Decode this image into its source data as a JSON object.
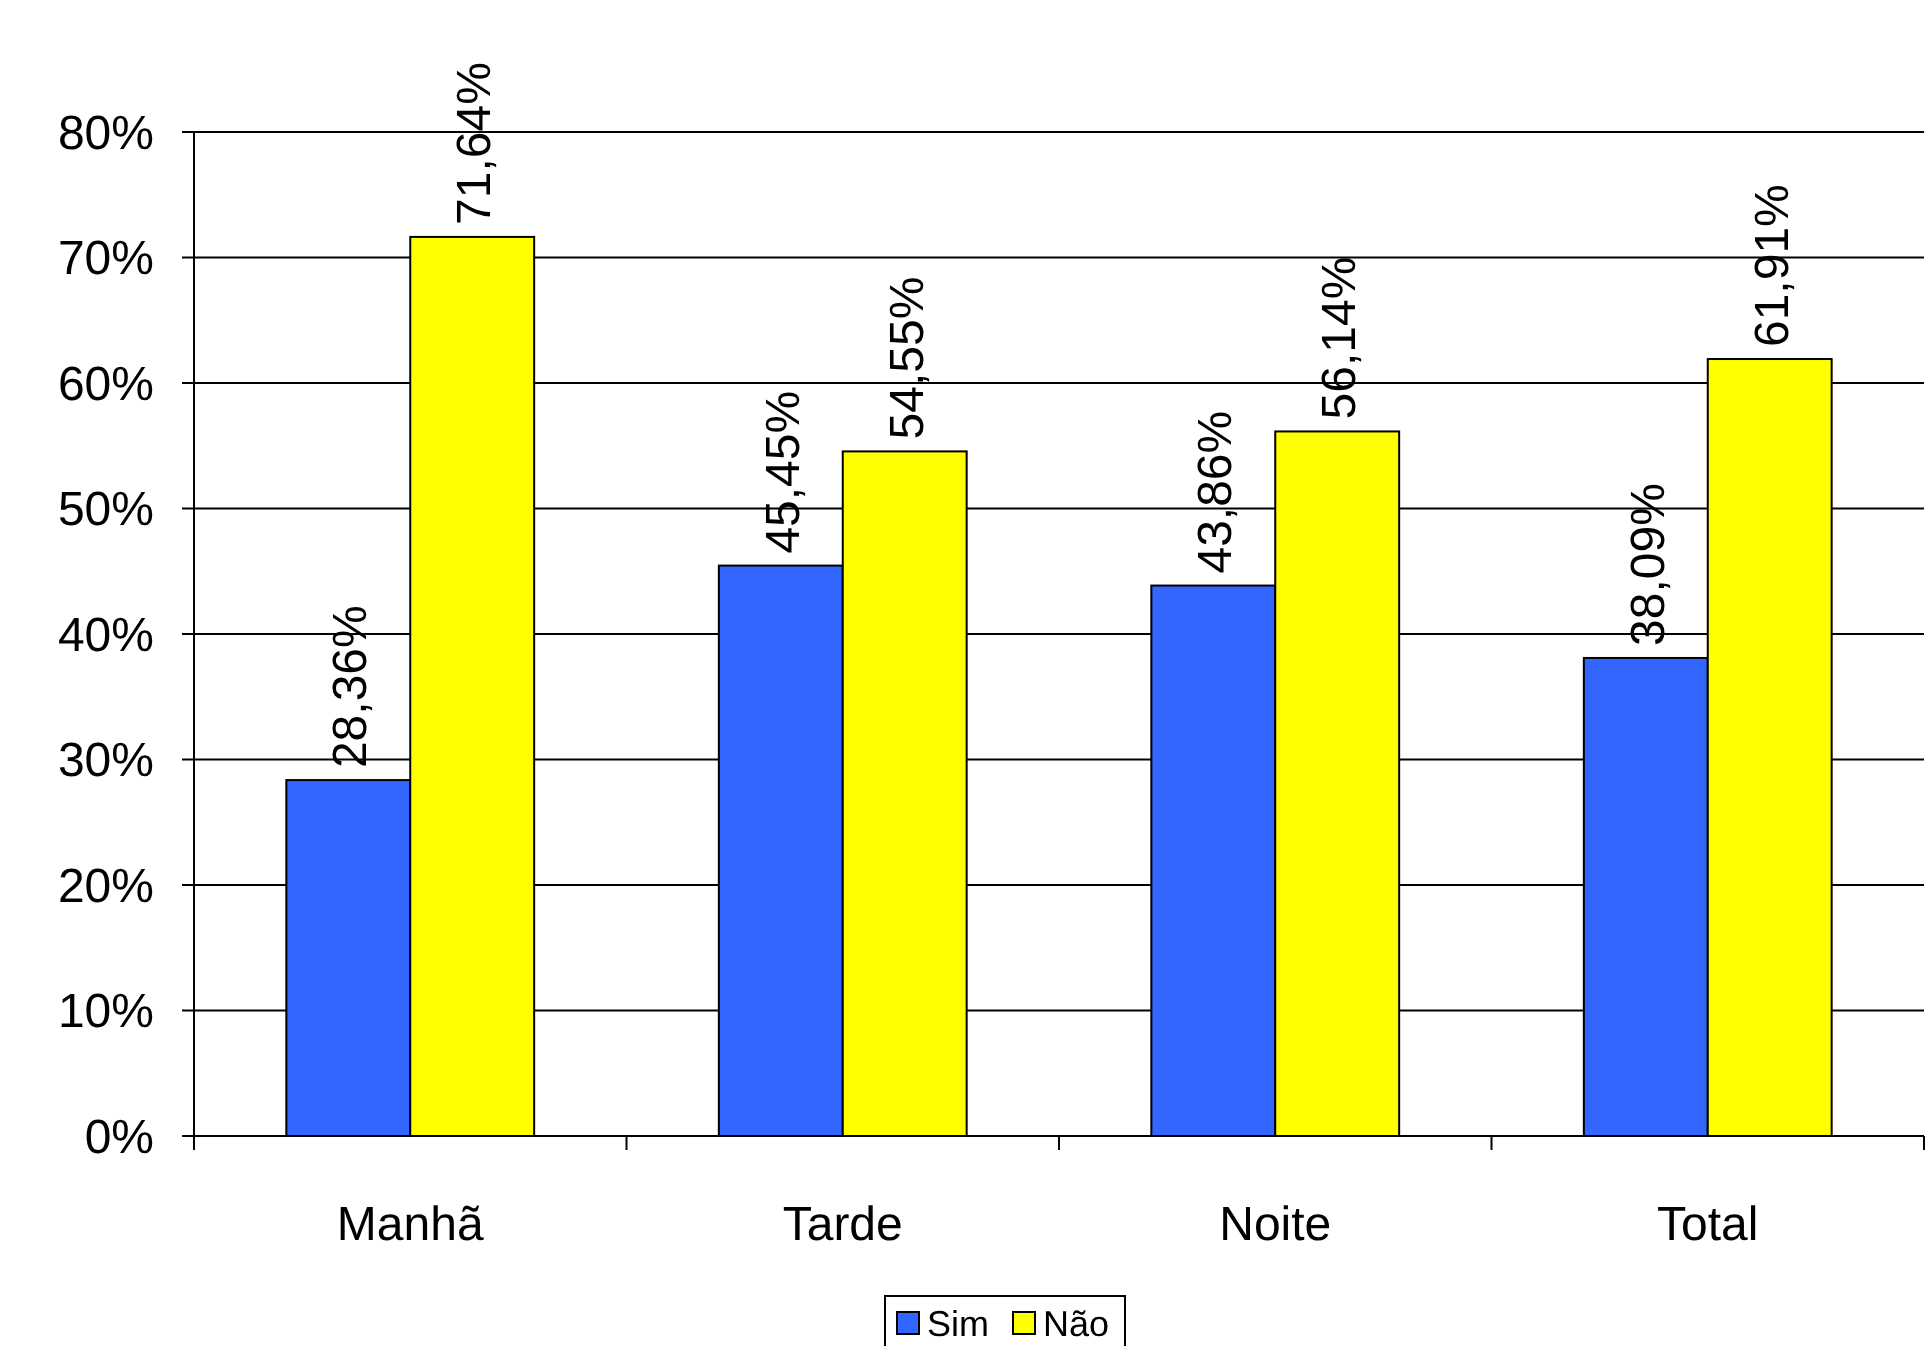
{
  "chart_data": {
    "type": "bar",
    "categories": [
      "Manhã",
      "Tarde",
      "Noite",
      "Total"
    ],
    "series": [
      {
        "name": "Sim",
        "color": "#3366ff",
        "values": [
          28.36,
          45.45,
          43.86,
          38.09
        ],
        "value_labels": [
          "28,36%",
          "45,45%",
          "43,86%",
          "38,09%"
        ]
      },
      {
        "name": "Não",
        "color": "#ffff00",
        "values": [
          71.64,
          54.55,
          56.14,
          61.91
        ],
        "value_labels": [
          "71,64%",
          "54,55%",
          "56,14%",
          "61,91%"
        ]
      }
    ],
    "ylim": [
      0,
      80
    ],
    "yticks": [
      {
        "value": 0,
        "label": "0%"
      },
      {
        "value": 10,
        "label": "10%"
      },
      {
        "value": 20,
        "label": "20%"
      },
      {
        "value": 30,
        "label": "30%"
      },
      {
        "value": 40,
        "label": "40%"
      },
      {
        "value": 50,
        "label": "50%"
      },
      {
        "value": 60,
        "label": "60%"
      },
      {
        "value": 70,
        "label": "70%"
      },
      {
        "value": 80,
        "label": "80%"
      }
    ],
    "grid": "y",
    "legend": "bottom"
  }
}
